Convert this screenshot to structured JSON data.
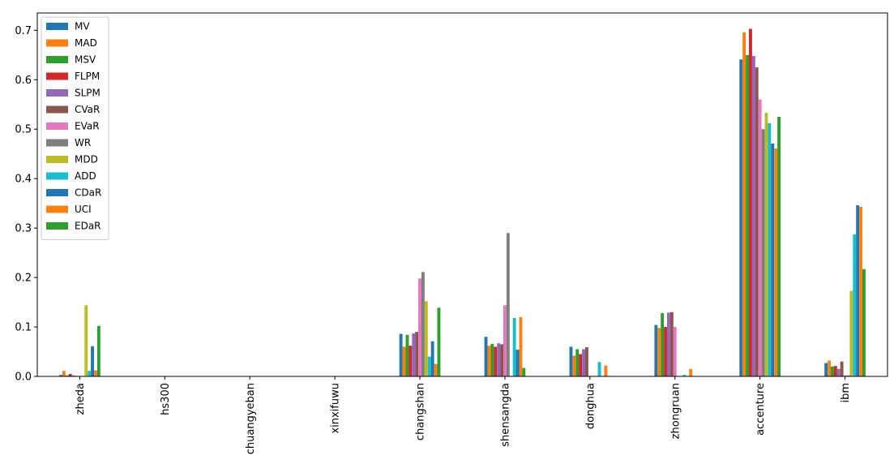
{
  "chart_data": {
    "type": "bar",
    "title": "",
    "xlabel": "",
    "ylabel": "",
    "ylim": [
      0,
      0.735
    ],
    "yticks": [
      0.0,
      0.1,
      0.2,
      0.3,
      0.4,
      0.5,
      0.6,
      0.7
    ],
    "ytick_labels": [
      "0.0",
      "0.1",
      "0.2",
      "0.3",
      "0.4",
      "0.5",
      "0.6",
      "0.7"
    ],
    "grid": false,
    "legend_position": "top-left",
    "categories": [
      "zheda",
      "hs300",
      "chuangyeban",
      "xinxifuwu",
      "changshan",
      "shensangda",
      "donghua",
      "zhongruan",
      "accenture",
      "ibm"
    ],
    "series": [
      {
        "name": "MV",
        "color": "#1f77b4",
        "values": [
          0.003,
          0,
          0,
          0,
          0.086,
          0.08,
          0.06,
          0.104,
          0.641,
          0.027
        ]
      },
      {
        "name": "MAD",
        "color": "#ff7f0e",
        "values": [
          0.011,
          0,
          0,
          0,
          0.06,
          0.062,
          0.042,
          0.098,
          0.696,
          0.032
        ]
      },
      {
        "name": "MSV",
        "color": "#2ca02c",
        "values": [
          0.002,
          0,
          0,
          0,
          0.084,
          0.066,
          0.055,
          0.128,
          0.65,
          0.02
        ]
      },
      {
        "name": "FLPM",
        "color": "#d62728",
        "values": [
          0.005,
          0,
          0,
          0,
          0.062,
          0.06,
          0.045,
          0.1,
          0.703,
          0.021
        ]
      },
      {
        "name": "SLPM",
        "color": "#9467bd",
        "values": [
          0.002,
          0,
          0,
          0,
          0.087,
          0.067,
          0.055,
          0.129,
          0.648,
          0.015
        ]
      },
      {
        "name": "CVaR",
        "color": "#8c564b",
        "values": [
          0.001,
          0,
          0,
          0,
          0.09,
          0.065,
          0.059,
          0.13,
          0.625,
          0.03
        ]
      },
      {
        "name": "EVaR",
        "color": "#e377c2",
        "values": [
          0.001,
          0,
          0,
          0,
          0.198,
          0.144,
          0.001,
          0.1,
          0.56,
          0.002
        ]
      },
      {
        "name": "WR",
        "color": "#7f7f7f",
        "values": [
          0.001,
          0,
          0,
          0,
          0.211,
          0.29,
          0.001,
          0.001,
          0.5,
          0.002
        ]
      },
      {
        "name": "MDD",
        "color": "#bcbd22",
        "values": [
          0.144,
          0,
          0,
          0,
          0.152,
          0.001,
          0.001,
          0.001,
          0.533,
          0.173
        ]
      },
      {
        "name": "ADD",
        "color": "#17becf",
        "values": [
          0.011,
          0,
          0,
          0,
          0.04,
          0.118,
          0.029,
          0.003,
          0.512,
          0.287
        ]
      },
      {
        "name": "CDaR",
        "color": "#1f77b4",
        "values": [
          0.061,
          0,
          0,
          0,
          0.071,
          0.054,
          0.001,
          0.001,
          0.471,
          0.346
        ]
      },
      {
        "name": "UCI",
        "color": "#ff7f0e",
        "values": [
          0.012,
          0,
          0,
          0,
          0.025,
          0.12,
          0.022,
          0.015,
          0.461,
          0.343
        ]
      },
      {
        "name": "EDaR",
        "color": "#2ca02c",
        "values": [
          0.102,
          0,
          0,
          0,
          0.139,
          0.017,
          0.001,
          0.001,
          0.525,
          0.217
        ]
      }
    ]
  }
}
